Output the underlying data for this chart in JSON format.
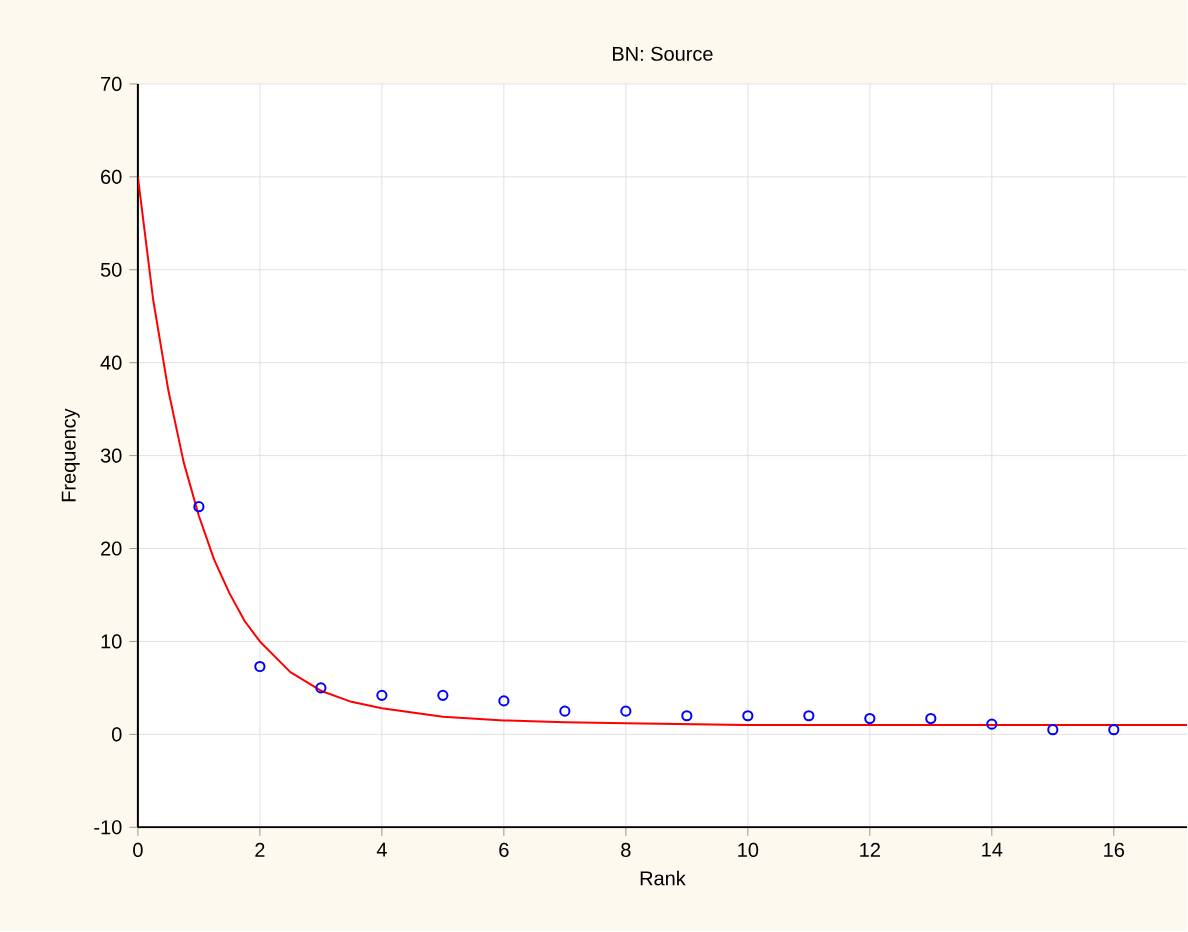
{
  "chart_data": {
    "type": "scatter",
    "title": "BN: Source",
    "xlabel": "Rank",
    "ylabel": "Frequency",
    "x": [
      1,
      2,
      3,
      4,
      5,
      6,
      7,
      8,
      9,
      10,
      11,
      12,
      13,
      14,
      15,
      16
    ],
    "series": [
      {
        "color": "#0000ff",
        "marker": "circle",
        "values": [
          24.5,
          7.3,
          5,
          4.2,
          4.2,
          3.6,
          2.5,
          2.5,
          2,
          2,
          2,
          1.7,
          1.7,
          1.1,
          0.5,
          0.5
        ]
      },
      {
        "type": "line",
        "color": "#ff0000",
        "marker": "none",
        "x": [
          0,
          0.25,
          0.5,
          0.75,
          1,
          1.25,
          1.5,
          1.75,
          2,
          2.5,
          3,
          3.5,
          4,
          5,
          6,
          7,
          8,
          10,
          12,
          14,
          17.2
        ],
        "values": [
          60,
          46.8,
          37,
          29.3,
          23.5,
          18.8,
          15.2,
          12.2,
          10,
          6.7,
          4.7,
          3.5,
          2.8,
          1.9,
          1.5,
          1.3,
          1.2,
          1,
          1,
          1,
          1
        ]
      }
    ],
    "xlim": [
      0,
      17.2
    ],
    "ylim": [
      -10,
      70
    ],
    "xticks": [
      0,
      2,
      4,
      6,
      8,
      10,
      12,
      14,
      16
    ],
    "yticks": [
      -10,
      0,
      10,
      20,
      30,
      40,
      50,
      60,
      70
    ],
    "grid": true
  }
}
